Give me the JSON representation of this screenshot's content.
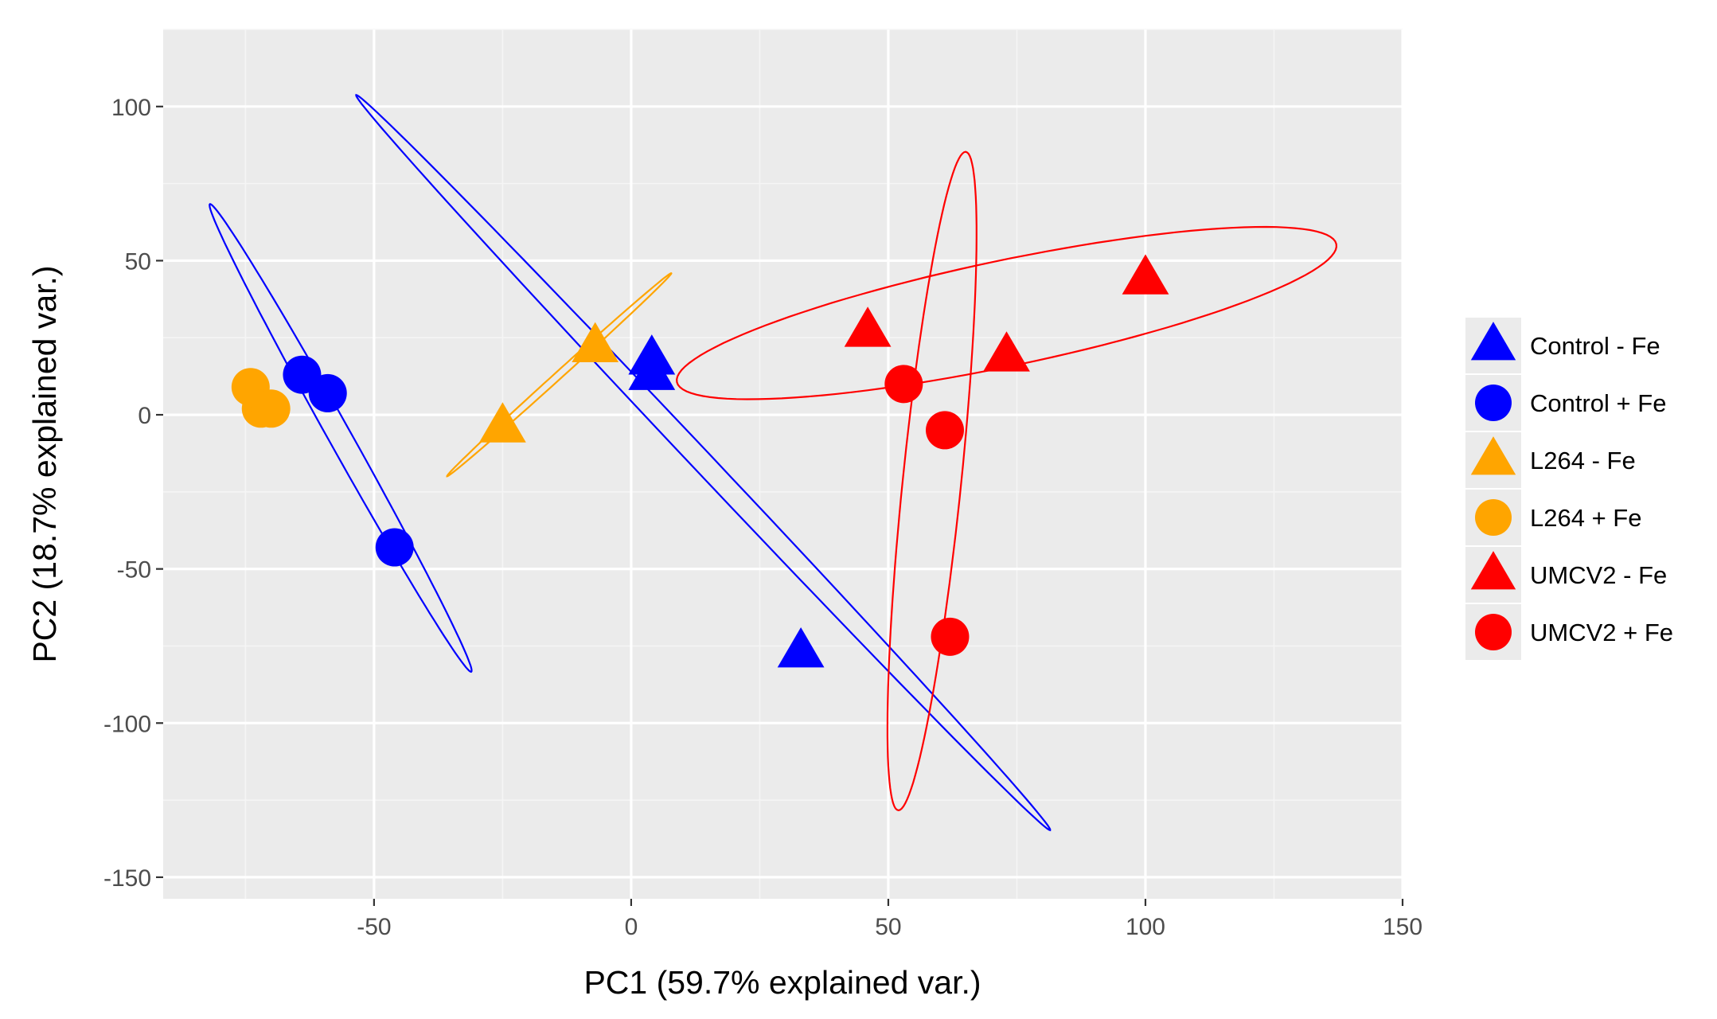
{
  "chart_data": {
    "type": "scatter",
    "title": "",
    "xlabel": "PC1 (59.7% explained var.)",
    "ylabel": "PC2 (18.7% explained var.)",
    "xlim": [
      -91,
      150
    ],
    "ylim": [
      -157,
      125
    ],
    "x_ticks": [
      -50,
      0,
      50,
      100,
      150
    ],
    "x_tick_labels": [
      "-50",
      "0",
      "50",
      "100",
      "150"
    ],
    "y_ticks": [
      -150,
      -100,
      -50,
      0,
      50,
      100
    ],
    "y_tick_labels": [
      "-150",
      "-100",
      "-50",
      "0",
      "50",
      "100"
    ],
    "grid": true,
    "legend_position": "right",
    "series": [
      {
        "name": "Control - Fe",
        "label": "Control - Fe",
        "shape": "triangle",
        "color": "#0000ff",
        "points": [
          [
            4,
            18
          ],
          [
            4,
            13
          ],
          [
            33,
            -77
          ]
        ]
      },
      {
        "name": "Control + Fe",
        "label": "Control + Fe",
        "shape": "circle",
        "color": "#0000ff",
        "points": [
          [
            -64,
            13
          ],
          [
            -59,
            7
          ],
          [
            -46,
            -43
          ]
        ]
      },
      {
        "name": "L264 - Fe",
        "label": "L264 - Fe",
        "shape": "triangle",
        "color": "#ffa500",
        "points": [
          [
            -7,
            22
          ],
          [
            -25,
            -4
          ]
        ]
      },
      {
        "name": "L264 + Fe",
        "label": "L264 + Fe",
        "shape": "circle",
        "color": "#ffa500",
        "points": [
          [
            -74,
            9
          ],
          [
            -72,
            2
          ],
          [
            -70,
            2
          ]
        ]
      },
      {
        "name": "UMCV2 - Fe",
        "label": "UMCV2 - Fe",
        "shape": "triangle",
        "color": "#ff0000",
        "points": [
          [
            46,
            27
          ],
          [
            73,
            19
          ],
          [
            100,
            44
          ]
        ]
      },
      {
        "name": "UMCV2 + Fe",
        "label": "UMCV2 + Fe",
        "shape": "circle",
        "color": "#ff0000",
        "points": [
          [
            53,
            10
          ],
          [
            61,
            -5
          ],
          [
            62,
            -72
          ]
        ]
      }
    ],
    "ellipses": [
      {
        "name": "control-plus-fe-ellipse",
        "color": "#0000ff",
        "cx": -56.5,
        "cy": -7.5,
        "a": 80,
        "b": 2.4,
        "angle_deg": -71.5
      },
      {
        "name": "control-minus-fe-ellipse",
        "color": "#0000ff",
        "cx": 14,
        "cy": -15.5,
        "a": 137,
        "b": 2.4,
        "angle_deg": -60.5
      },
      {
        "name": "l264-minus-fe-ellipse",
        "color": "#ffa500",
        "cx": -14,
        "cy": 13,
        "a": 39.5,
        "b": 0.9,
        "angle_deg": 56.5
      },
      {
        "name": "l264-plus-fe-ellipse",
        "color": "#ffa500",
        "cx": -72,
        "cy": 4,
        "a": 5.5,
        "b": 1.5,
        "angle_deg": -60
      },
      {
        "name": "umcv2-minus-fe-ellipse",
        "color": "#ff0000",
        "cx": 73,
        "cy": 33,
        "a": 68,
        "b": 16.5,
        "angle_deg": 20
      },
      {
        "name": "umcv2-plus-fe-ellipse",
        "color": "#ff0000",
        "cx": 58.5,
        "cy": -21.5,
        "a": 107,
        "b": 5.7,
        "angle_deg": 86.5
      }
    ]
  }
}
